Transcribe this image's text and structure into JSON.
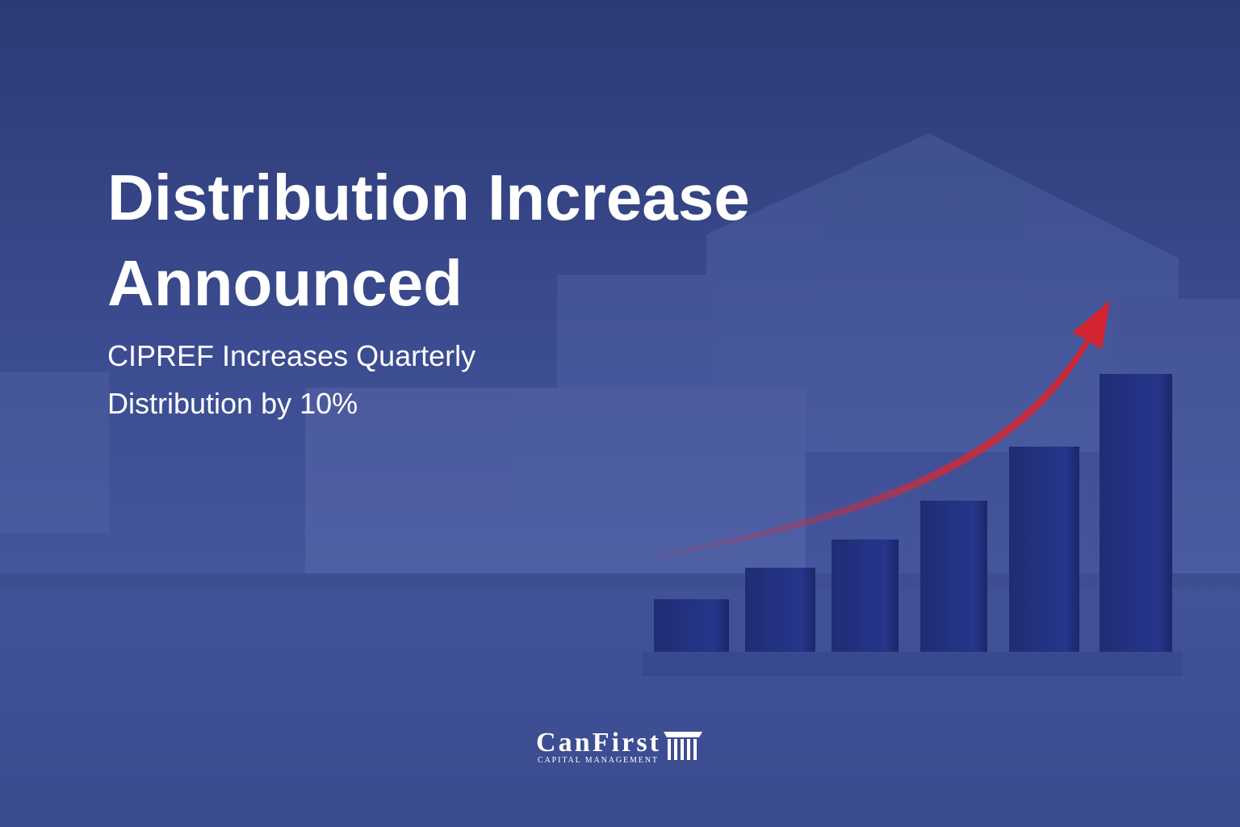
{
  "header": {
    "title": [
      "Distribution Increase",
      "Announced"
    ],
    "subtitle": [
      "CIPREF Increases Quarterly",
      "Distribution by 10%"
    ]
  },
  "logo": {
    "name": "CanFirst",
    "tagline": "CAPITAL MANAGEMENT"
  }
}
